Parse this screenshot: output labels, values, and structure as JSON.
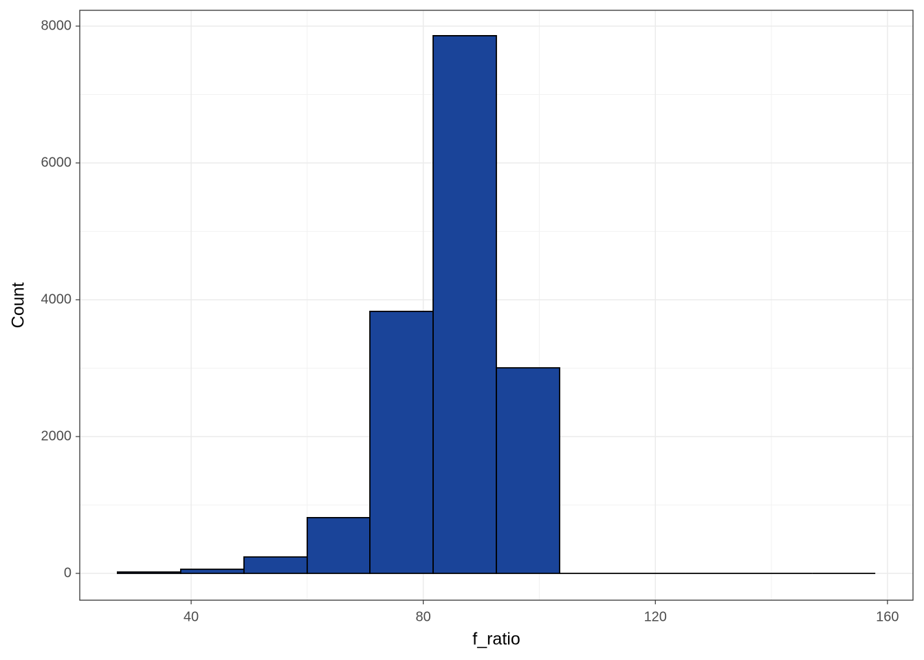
{
  "chart_data": {
    "type": "histogram",
    "x_label": "f_ratio",
    "y_label": "Count",
    "bins": [
      27.3,
      38.2,
      49.1,
      60.0,
      70.8,
      81.7,
      92.6,
      103.5,
      114.4,
      125.3,
      136.2,
      147.0,
      157.9
    ],
    "counts": [
      20,
      60,
      240,
      815,
      3830,
      7860,
      3005,
      0,
      0,
      0,
      0,
      0
    ],
    "color": "#1a4499",
    "edge_color": "#000000",
    "xlim": [
      20.8,
      164.4
    ],
    "xticks": [
      40,
      80,
      120,
      160
    ],
    "x_minor_grid": [
      60,
      100,
      140
    ],
    "ylim": [
      -392,
      8231
    ],
    "yticks": [
      0,
      2000,
      4000,
      6000,
      8000
    ],
    "y_minor_grid": [
      1000,
      3000,
      5000,
      7000
    ],
    "grid": true
  }
}
